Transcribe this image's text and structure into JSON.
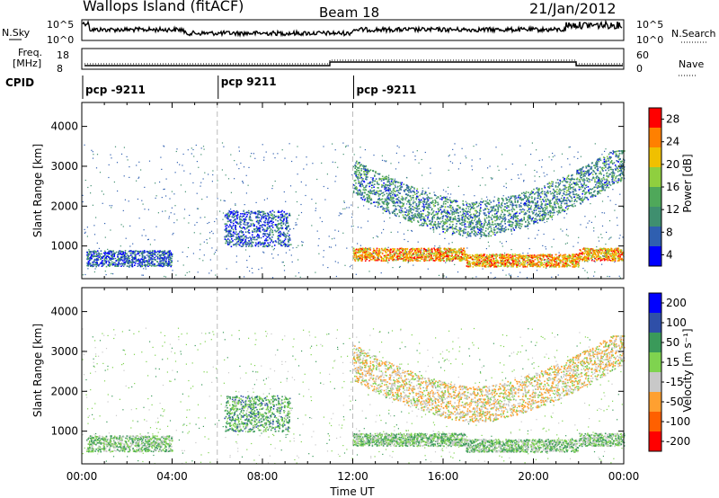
{
  "header": {
    "station": "Wallops Island (fitACF)",
    "beam": "Beam 18",
    "date": "21/Jan/2012"
  },
  "noise_panel": {
    "left_label": "N.Sky",
    "right_label": "N.Search",
    "left_ticks": [
      "10^5",
      "10^0"
    ],
    "right_ticks": [
      "10^5",
      "10^0"
    ]
  },
  "freq_panel": {
    "left_label_line1": "Freq.",
    "left_label_line2": "[MHz]",
    "right_label": "Nave",
    "left_ticks": [
      "18",
      "8"
    ],
    "right_ticks": [
      "60",
      "0"
    ]
  },
  "cpid": {
    "label": "CPID",
    "segments": [
      {
        "text": "pcp -9211",
        "start_hour": 0
      },
      {
        "text": "pcp 9211",
        "start_hour": 6
      },
      {
        "text": "pcp -9211",
        "start_hour": 12
      }
    ]
  },
  "x_axis": {
    "label": "Time UT",
    "ticks": [
      "00:00",
      "04:00",
      "08:00",
      "12:00",
      "16:00",
      "20:00",
      "00:00"
    ],
    "range_hours": [
      0,
      24
    ]
  },
  "power_panel": {
    "ylabel": "Slant Range [km]",
    "yticks": [
      "4000",
      "3000",
      "2000",
      "1000"
    ],
    "colorbar_label": "Power [dB]",
    "colorbar_ticks": [
      "28",
      "24",
      "20",
      "16",
      "12",
      "8",
      "4"
    ]
  },
  "velocity_panel": {
    "ylabel": "Slant Range [km]",
    "yticks": [
      "4000",
      "3000",
      "2000",
      "1000"
    ],
    "colorbar_label": "Velocity [m s⁻¹]",
    "colorbar_ticks": [
      "200",
      "100",
      "50",
      "15",
      "-15",
      "-50",
      "-100",
      "-200"
    ]
  },
  "chart_data": [
    {
      "type": "heatmap",
      "title": "Power",
      "xlabel": "Time UT",
      "ylabel": "Slant Range [km]",
      "xlim_hours": [
        0,
        24
      ],
      "ylim": [
        180,
        4600
      ],
      "colorbar_range": [
        0,
        32
      ],
      "colors": [
        "#0000ff",
        "#2f5fb0",
        "#3f8f6f",
        "#4fa85a",
        "#8fcf3f",
        "#f0c000",
        "#ff8000",
        "#ff0000"
      ],
      "features": [
        {
          "name": "early backscatter",
          "hours": [
            0.2,
            4.0
          ],
          "range_km": [
            500,
            900
          ],
          "power_db": 6
        },
        {
          "name": "morning patch",
          "hours": [
            6.3,
            9.2
          ],
          "range_km": [
            1000,
            1900
          ],
          "power_db": 6
        },
        {
          "name": "ground scatter band",
          "hours": [
            12.0,
            24.0
          ],
          "range_km": [
            700,
            1000
          ],
          "power_db": 24
        },
        {
          "name": "ionospheric arc",
          "hours": [
            12.0,
            24.0
          ],
          "range_km": [
            1500,
            3300
          ],
          "power_db": 10
        }
      ]
    },
    {
      "type": "heatmap",
      "title": "Velocity",
      "xlabel": "Time UT",
      "ylabel": "Slant Range [km]",
      "xlim_hours": [
        0,
        24
      ],
      "ylim": [
        180,
        4600
      ],
      "colorbar_range": [
        -250,
        250
      ],
      "colors": [
        "#ff0000",
        "#ff6000",
        "#ffa030",
        "#c8c8c8",
        "#7fd34f",
        "#3a9a5a",
        "#2f4fa8",
        "#0000ff"
      ],
      "features": [
        {
          "name": "early backscatter",
          "hours": [
            0.2,
            4.0
          ],
          "range_km": [
            500,
            900
          ],
          "velocity": 0
        },
        {
          "name": "morning patch",
          "hours": [
            6.3,
            9.2
          ],
          "range_km": [
            1000,
            1900
          ],
          "velocity": 20
        },
        {
          "name": "ground scatter band",
          "hours": [
            12.0,
            24.0
          ],
          "range_km": [
            700,
            1000
          ],
          "velocity": 0
        },
        {
          "name": "ionospheric arc",
          "hours": [
            12.0,
            24.0
          ],
          "range_km": [
            1500,
            3300
          ],
          "velocity": -40
        }
      ]
    }
  ]
}
